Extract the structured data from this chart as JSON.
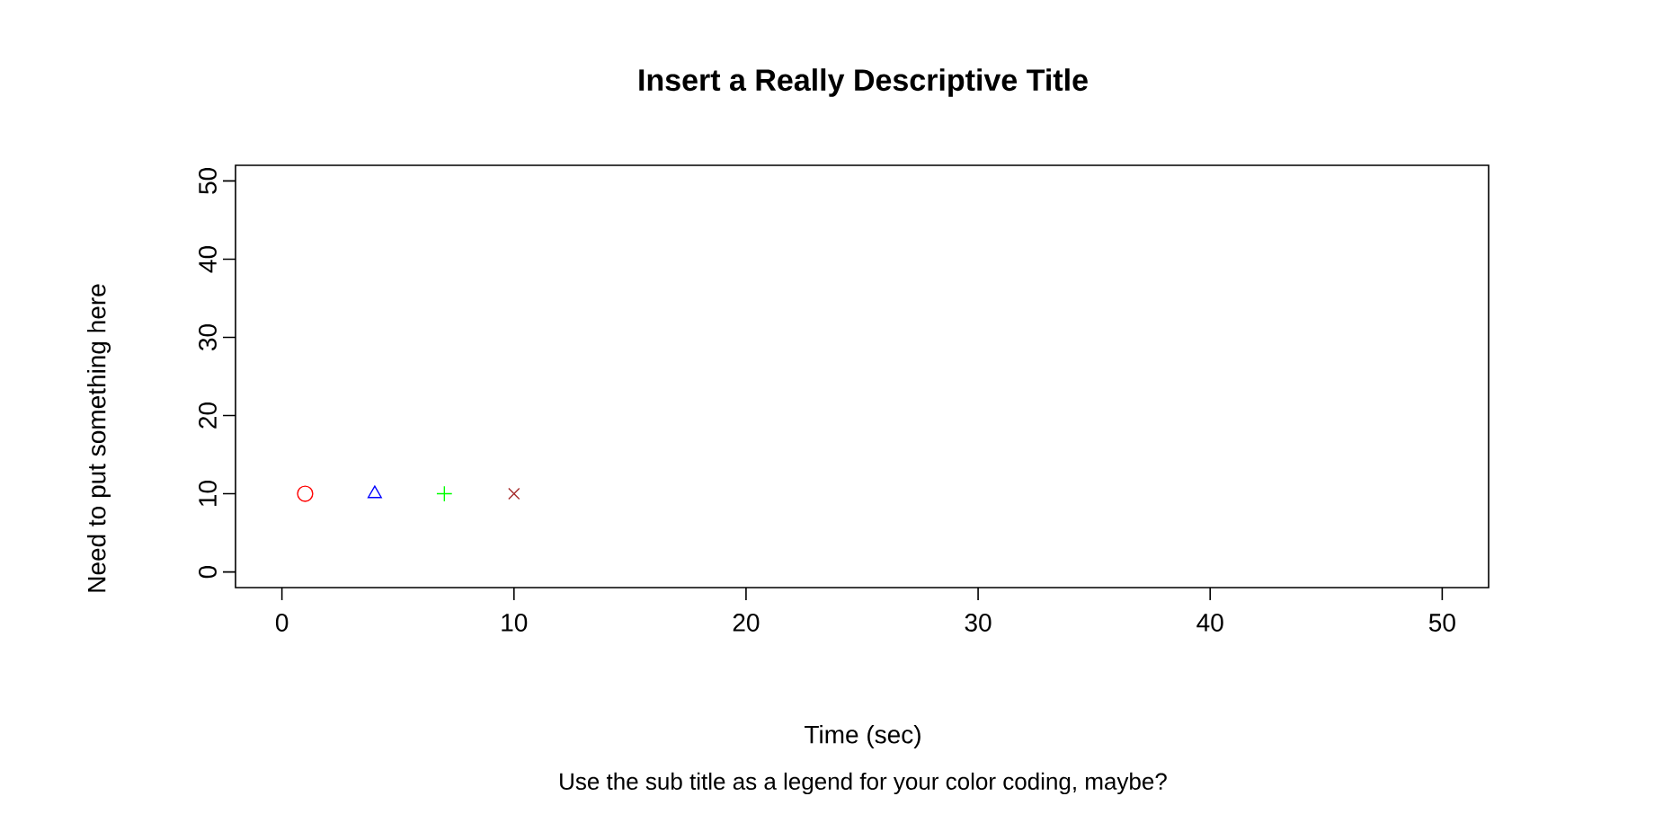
{
  "chart_data": {
    "type": "scatter",
    "title": "Insert a Really Descriptive Title",
    "xlabel": "Time (sec)",
    "ylabel": "Need to put something here",
    "annotations": [
      "Use the sub title as a legend for your color coding, maybe?"
    ],
    "series": [
      {
        "x": [
          1
        ],
        "values": [
          10
        ],
        "color": "#ff0000",
        "marker": "circle"
      },
      {
        "x": [
          4
        ],
        "values": [
          10
        ],
        "color": "#0000ff",
        "marker": "triangle"
      },
      {
        "x": [
          7
        ],
        "values": [
          10
        ],
        "color": "#00ff00",
        "marker": "plus"
      },
      {
        "x": [
          10
        ],
        "values": [
          10
        ],
        "color": "#a52a2a",
        "marker": "cross"
      }
    ],
    "xlim": [
      -2,
      52
    ],
    "ylim": [
      -2,
      52
    ],
    "xticks": [
      0,
      10,
      20,
      30,
      40,
      50
    ],
    "yticks": [
      0,
      10,
      20,
      30,
      40,
      50
    ],
    "grid": false
  }
}
